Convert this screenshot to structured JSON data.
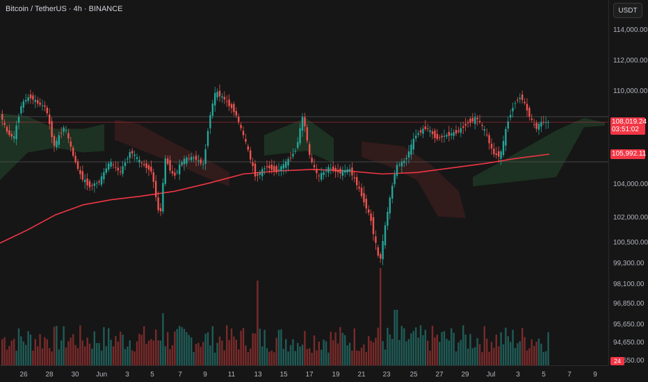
{
  "header": {
    "symbol_title": "Bitcoin / TetherUS · 4h · BINANCE"
  },
  "price_scale": {
    "currency_button": "USDT",
    "ticks": [
      {
        "label": "114,000.00",
        "value": 114000
      },
      {
        "label": "112,000.00",
        "value": 112000
      },
      {
        "label": "110,000.00",
        "value": 110000
      },
      {
        "label": "104,000.00",
        "value": 104000
      },
      {
        "label": "102,000.00",
        "value": 102000
      },
      {
        "label": "100,500.00",
        "value": 100500
      },
      {
        "label": "99,300.00",
        "value": 99300
      },
      {
        "label": "98,100.00",
        "value": 98100
      },
      {
        "label": "96,850.00",
        "value": 96850
      },
      {
        "label": "95,650.00",
        "value": 95650
      },
      {
        "label": "94,650.00",
        "value": 94650
      },
      {
        "label": "93,650.00",
        "value": 93650
      }
    ],
    "last_price": "108,019.24",
    "countdown": "03:51:02",
    "ma_value": "105,992.11",
    "volume_label": "24"
  },
  "time_axis": {
    "labels": [
      "26",
      "28",
      "30",
      "Jun",
      "3",
      "5",
      "7",
      "9",
      "11",
      "13",
      "15",
      "17",
      "19",
      "21",
      "23",
      "25",
      "27",
      "29",
      "Jul",
      "3",
      "5",
      "7",
      "9"
    ]
  },
  "colors": {
    "background": "#161616",
    "up": "#26a69a",
    "down": "#ef5350",
    "ma_line": "#f23645",
    "cloud_bull": "#1f3a26",
    "cloud_bear": "#3a1d1d"
  },
  "chart_data": {
    "type": "candlestick",
    "symbol": "BTCUSDT",
    "interval": "4h",
    "exchange": "BINANCE",
    "y_range": [
      99000,
      115000
    ],
    "last_price": 108019.24,
    "moving_average_last": 105992.11,
    "close_path": [
      {
        "x": 0,
        "y": 108800
      },
      {
        "x": 12,
        "y": 107400
      },
      {
        "x": 22,
        "y": 107000
      },
      {
        "x": 33,
        "y": 109200
      },
      {
        "x": 45,
        "y": 109700
      },
      {
        "x": 58,
        "y": 109200
      },
      {
        "x": 68,
        "y": 109000
      },
      {
        "x": 80,
        "y": 106500
      },
      {
        "x": 95,
        "y": 107800
      },
      {
        "x": 108,
        "y": 105800
      },
      {
        "x": 118,
        "y": 104600
      },
      {
        "x": 130,
        "y": 103900
      },
      {
        "x": 145,
        "y": 104200
      },
      {
        "x": 160,
        "y": 105500
      },
      {
        "x": 175,
        "y": 104800
      },
      {
        "x": 190,
        "y": 106200
      },
      {
        "x": 205,
        "y": 105400
      },
      {
        "x": 220,
        "y": 104900
      },
      {
        "x": 232,
        "y": 101900
      },
      {
        "x": 240,
        "y": 105700
      },
      {
        "x": 252,
        "y": 104500
      },
      {
        "x": 265,
        "y": 105600
      },
      {
        "x": 280,
        "y": 105800
      },
      {
        "x": 295,
        "y": 105300
      },
      {
        "x": 303,
        "y": 108200
      },
      {
        "x": 312,
        "y": 110000
      },
      {
        "x": 325,
        "y": 109500
      },
      {
        "x": 340,
        "y": 108700
      },
      {
        "x": 355,
        "y": 106800
      },
      {
        "x": 370,
        "y": 104500
      },
      {
        "x": 385,
        "y": 105200
      },
      {
        "x": 400,
        "y": 104900
      },
      {
        "x": 415,
        "y": 105500
      },
      {
        "x": 428,
        "y": 106300
      },
      {
        "x": 438,
        "y": 108500
      },
      {
        "x": 448,
        "y": 105700
      },
      {
        "x": 460,
        "y": 104500
      },
      {
        "x": 475,
        "y": 105100
      },
      {
        "x": 490,
        "y": 104800
      },
      {
        "x": 505,
        "y": 105000
      },
      {
        "x": 520,
        "y": 103600
      },
      {
        "x": 535,
        "y": 102000
      },
      {
        "x": 548,
        "y": 99300
      },
      {
        "x": 560,
        "y": 102500
      },
      {
        "x": 572,
        "y": 105200
      },
      {
        "x": 585,
        "y": 105600
      },
      {
        "x": 600,
        "y": 107200
      },
      {
        "x": 615,
        "y": 107700
      },
      {
        "x": 630,
        "y": 107000
      },
      {
        "x": 645,
        "y": 107200
      },
      {
        "x": 660,
        "y": 107400
      },
      {
        "x": 675,
        "y": 108000
      },
      {
        "x": 688,
        "y": 108300
      },
      {
        "x": 700,
        "y": 107400
      },
      {
        "x": 712,
        "y": 106000
      },
      {
        "x": 722,
        "y": 105900
      },
      {
        "x": 732,
        "y": 108000
      },
      {
        "x": 742,
        "y": 109300
      },
      {
        "x": 752,
        "y": 109700
      },
      {
        "x": 762,
        "y": 108600
      },
      {
        "x": 772,
        "y": 107600
      },
      {
        "x": 780,
        "y": 108000
      },
      {
        "x": 790,
        "y": 108019
      }
    ],
    "moving_average_path": [
      {
        "x": 0,
        "y": 100500
      },
      {
        "x": 40,
        "y": 101300
      },
      {
        "x": 80,
        "y": 102200
      },
      {
        "x": 120,
        "y": 102800
      },
      {
        "x": 160,
        "y": 103100
      },
      {
        "x": 200,
        "y": 103300
      },
      {
        "x": 250,
        "y": 103600
      },
      {
        "x": 300,
        "y": 104100
      },
      {
        "x": 350,
        "y": 104700
      },
      {
        "x": 400,
        "y": 104900
      },
      {
        "x": 450,
        "y": 105000
      },
      {
        "x": 500,
        "y": 104900
      },
      {
        "x": 550,
        "y": 104700
      },
      {
        "x": 600,
        "y": 104800
      },
      {
        "x": 650,
        "y": 105100
      },
      {
        "x": 700,
        "y": 105400
      },
      {
        "x": 740,
        "y": 105700
      },
      {
        "x": 790,
        "y": 105992
      }
    ]
  }
}
